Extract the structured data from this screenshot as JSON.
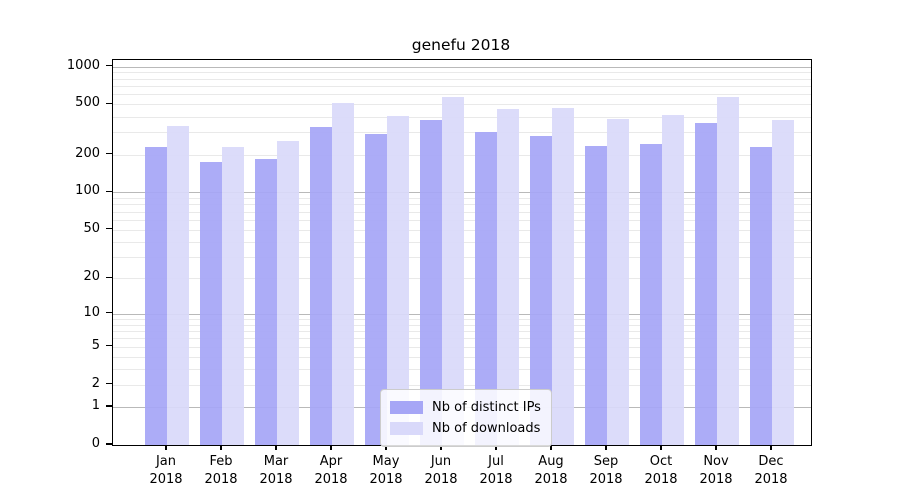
{
  "chart_data": {
    "type": "bar",
    "title": "genefu 2018",
    "categories": [
      "Jan 2018",
      "Feb 2018",
      "Mar 2018",
      "Apr 2018",
      "May 2018",
      "Jun 2018",
      "Jul 2018",
      "Aug 2018",
      "Sep 2018",
      "Oct 2018",
      "Nov 2018",
      "Dec 2018"
    ],
    "x_labels": [
      {
        "month": "Jan",
        "year": "2018"
      },
      {
        "month": "Feb",
        "year": "2018"
      },
      {
        "month": "Mar",
        "year": "2018"
      },
      {
        "month": "Apr",
        "year": "2018"
      },
      {
        "month": "May",
        "year": "2018"
      },
      {
        "month": "Jun",
        "year": "2018"
      },
      {
        "month": "Jul",
        "year": "2018"
      },
      {
        "month": "Aug",
        "year": "2018"
      },
      {
        "month": "Sep",
        "year": "2018"
      },
      {
        "month": "Oct",
        "year": "2018"
      },
      {
        "month": "Nov",
        "year": "2018"
      },
      {
        "month": "Dec",
        "year": "2018"
      }
    ],
    "series": [
      {
        "name": "Nb of distinct IPs",
        "color": "#a6a6f6",
        "values": [
          228,
          173,
          184,
          333,
          292,
          373,
          302,
          282,
          232,
          242,
          354,
          231
        ]
      },
      {
        "name": "Nb of downloads",
        "color": "#d9d9fa",
        "values": [
          338,
          229,
          254,
          512,
          403,
          577,
          462,
          465,
          383,
          415,
          569,
          376
        ]
      }
    ],
    "yscale": "log1p",
    "yticks": [
      1000,
      500,
      200,
      100,
      50,
      20,
      10,
      5,
      2,
      1,
      0
    ],
    "ylim": [
      0,
      1150
    ],
    "grid": "major+minor horizontal",
    "legend_position": "lower center inside"
  },
  "ui": {
    "background": "#ffffff",
    "bar_color_ips": "#a6a6f6",
    "bar_color_downloads": "#d9d9fa",
    "major_grid_color": "#b9b9b9",
    "minor_grid_color": "#e9e9e9",
    "axis_color": "#000000"
  }
}
